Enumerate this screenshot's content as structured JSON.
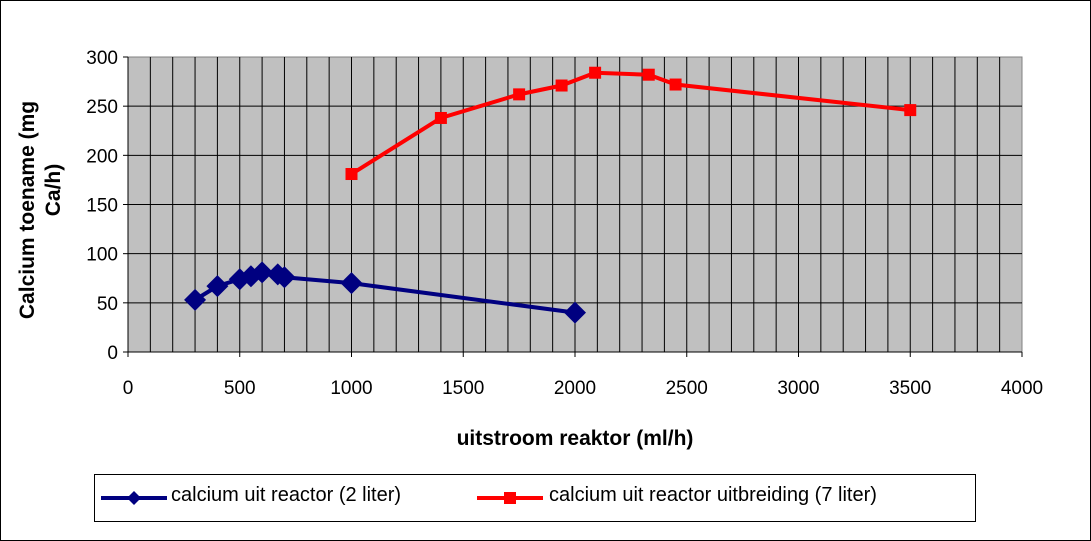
{
  "chart_data": {
    "type": "line",
    "title": "",
    "xlabel": "uitstroom reaktor (ml/h)",
    "ylabel": "Calcium toename (mg Ca/h)",
    "xlim": [
      0,
      4000
    ],
    "ylim": [
      0,
      300
    ],
    "xticks": [
      0,
      500,
      1000,
      1500,
      2000,
      2500,
      3000,
      3500,
      4000
    ],
    "yticks": [
      0,
      50,
      100,
      150,
      200,
      250,
      300
    ],
    "grid": true,
    "legend_position": "bottom",
    "series": [
      {
        "name": "calcium uit reactor (2 liter)",
        "color": "#000080",
        "marker": "diamond",
        "x": [
          300,
          400,
          500,
          550,
          600,
          670,
          700,
          1000,
          2000
        ],
        "y": [
          53,
          67,
          74,
          77,
          81,
          79,
          76,
          70,
          40
        ]
      },
      {
        "name": "calcium uit reactor uitbreiding (7 liter)",
        "color": "#FF0000",
        "marker": "square",
        "x": [
          1000,
          1400,
          1750,
          1940,
          2090,
          2330,
          2450,
          3500
        ],
        "y": [
          181,
          238,
          262,
          271,
          284,
          282,
          272,
          246
        ]
      }
    ]
  }
}
